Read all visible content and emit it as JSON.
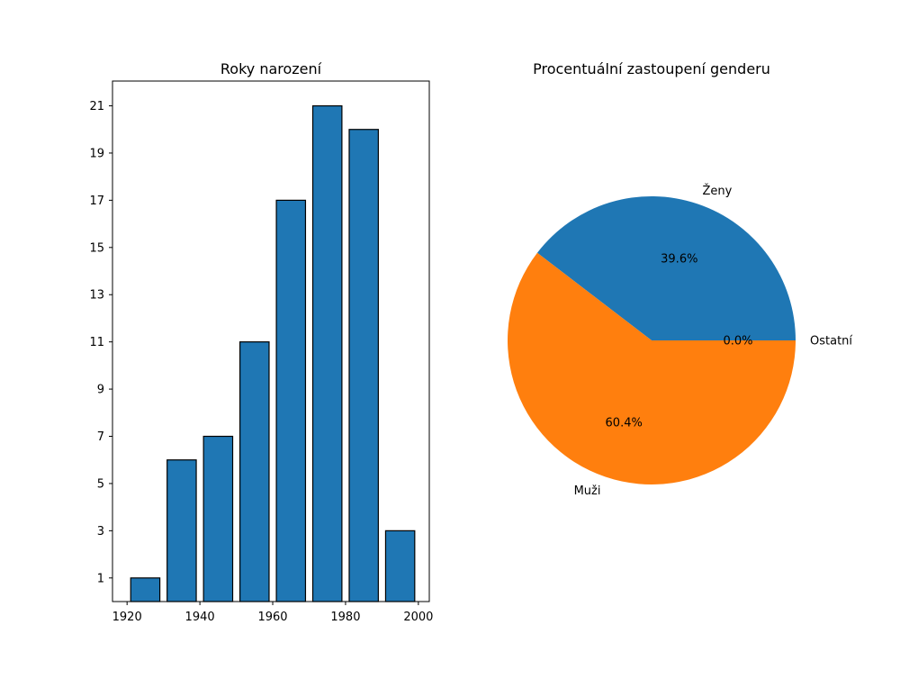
{
  "chart_data": [
    {
      "type": "bar",
      "title": "Roky narození",
      "xlabel": "",
      "ylabel": "",
      "x": [
        1925,
        1935,
        1945,
        1955,
        1965,
        1975,
        1985,
        1995
      ],
      "values": [
        1,
        6,
        7,
        11,
        17,
        21,
        20,
        3
      ],
      "bin_width": 10,
      "xlim": [
        1916,
        2003
      ],
      "ylim": [
        0,
        22.05
      ],
      "xticks": [
        1920,
        1940,
        1960,
        1980,
        2000
      ],
      "yticks": [
        1,
        3,
        5,
        7,
        9,
        11,
        13,
        15,
        17,
        19,
        21
      ],
      "color": "#1f77b4",
      "edgecolor": "#000000",
      "grid": false
    },
    {
      "type": "pie",
      "title": "Procentuální zastoupení genderu",
      "labels": [
        "Ženy",
        "Muži",
        "Ostatní"
      ],
      "values": [
        39.6,
        60.4,
        0.0
      ],
      "pct_labels": [
        "39.6%",
        "60.4%",
        "0.0%"
      ],
      "colors": [
        "#1f77b4",
        "#ff7f0e",
        "#2ca02c"
      ]
    }
  ]
}
